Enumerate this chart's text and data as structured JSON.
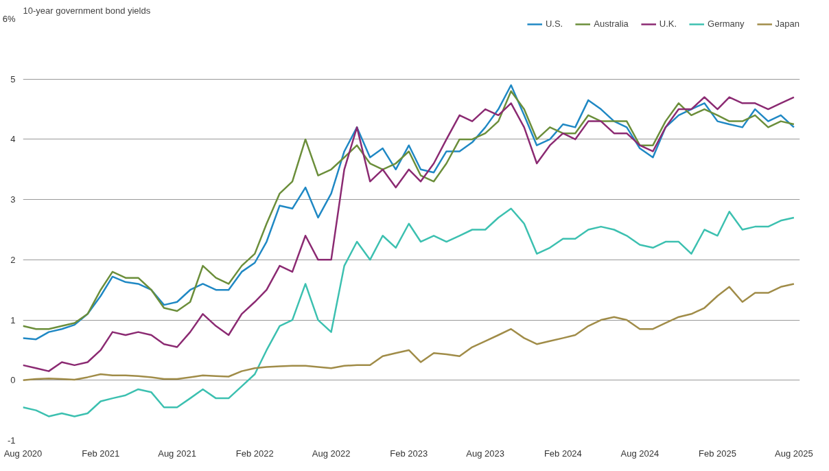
{
  "chart_data": {
    "type": "line",
    "title": "10-year government bond yields",
    "x": [
      "2020-08-01",
      "2020-09-01",
      "2020-10-01",
      "2020-11-01",
      "2020-12-01",
      "2021-01-01",
      "2021-02-01",
      "2021-03-01",
      "2021-04-01",
      "2021-05-01",
      "2021-06-01",
      "2021-07-01",
      "2021-08-01",
      "2021-09-01",
      "2021-10-01",
      "2021-11-01",
      "2021-12-01",
      "2022-01-01",
      "2022-02-01",
      "2022-03-01",
      "2022-04-01",
      "2022-05-01",
      "2022-06-01",
      "2022-07-01",
      "2022-08-01",
      "2022-09-01",
      "2022-10-01",
      "2022-11-01",
      "2022-12-01",
      "2023-01-01",
      "2023-02-01",
      "2023-03-01",
      "2023-04-01",
      "2023-05-01",
      "2023-06-01",
      "2023-07-01",
      "2023-08-01",
      "2023-09-01",
      "2023-10-01",
      "2023-11-01",
      "2023-12-01",
      "2024-01-01",
      "2024-02-01",
      "2024-03-01",
      "2024-04-01",
      "2024-05-01",
      "2024-06-01",
      "2024-07-01",
      "2024-08-01",
      "2024-09-01",
      "2024-10-01",
      "2024-11-01",
      "2024-12-01",
      "2025-01-01",
      "2025-02-01",
      "2025-03-01",
      "2025-04-01",
      "2025-05-01",
      "2025-06-01",
      "2025-07-01",
      "2025-08-01"
    ],
    "series": [
      {
        "name": "U.S.",
        "color": "#1f88c4",
        "values": [
          0.7,
          0.68,
          0.8,
          0.85,
          0.92,
          1.1,
          1.4,
          1.72,
          1.63,
          1.6,
          1.5,
          1.25,
          1.3,
          1.5,
          1.6,
          1.5,
          1.5,
          1.8,
          1.95,
          2.3,
          2.9,
          2.85,
          3.2,
          2.7,
          3.1,
          3.8,
          4.2,
          3.7,
          3.85,
          3.5,
          3.9,
          3.5,
          3.45,
          3.8,
          3.8,
          3.95,
          4.2,
          4.5,
          4.9,
          4.4,
          3.9,
          4.0,
          4.25,
          4.2,
          4.65,
          4.5,
          4.3,
          4.2,
          3.85,
          3.7,
          4.2,
          4.4,
          4.5,
          4.6,
          4.3,
          4.25,
          4.2,
          4.5,
          4.3,
          4.4,
          4.2
        ]
      },
      {
        "name": "Australia",
        "color": "#6b8e3a",
        "values": [
          0.9,
          0.85,
          0.85,
          0.9,
          0.95,
          1.1,
          1.5,
          1.8,
          1.7,
          1.7,
          1.5,
          1.2,
          1.15,
          1.3,
          1.9,
          1.7,
          1.6,
          1.9,
          2.1,
          2.6,
          3.1,
          3.3,
          4.0,
          3.4,
          3.5,
          3.7,
          3.9,
          3.6,
          3.5,
          3.6,
          3.8,
          3.4,
          3.3,
          3.6,
          4.0,
          4.0,
          4.1,
          4.3,
          4.8,
          4.5,
          4.0,
          4.2,
          4.1,
          4.1,
          4.4,
          4.3,
          4.3,
          4.3,
          3.9,
          3.9,
          4.3,
          4.6,
          4.4,
          4.5,
          4.4,
          4.3,
          4.3,
          4.4,
          4.2,
          4.3,
          4.25
        ]
      },
      {
        "name": "U.K.",
        "color": "#8b2a72",
        "values": [
          0.25,
          0.2,
          0.15,
          0.3,
          0.25,
          0.3,
          0.5,
          0.8,
          0.75,
          0.8,
          0.75,
          0.6,
          0.55,
          0.8,
          1.1,
          0.9,
          0.75,
          1.1,
          1.3,
          1.5,
          1.9,
          1.8,
          2.4,
          2.0,
          2.0,
          3.5,
          4.2,
          3.3,
          3.5,
          3.2,
          3.5,
          3.3,
          3.6,
          4.0,
          4.4,
          4.3,
          4.5,
          4.4,
          4.6,
          4.2,
          3.6,
          3.9,
          4.1,
          4.0,
          4.3,
          4.3,
          4.1,
          4.1,
          3.9,
          3.8,
          4.2,
          4.5,
          4.5,
          4.7,
          4.5,
          4.7,
          4.6,
          4.6,
          4.5,
          4.6,
          4.7
        ]
      },
      {
        "name": "Germany",
        "color": "#3cc0b0",
        "values": [
          -0.45,
          -0.5,
          -0.6,
          -0.55,
          -0.6,
          -0.55,
          -0.35,
          -0.3,
          -0.25,
          -0.15,
          -0.2,
          -0.45,
          -0.45,
          -0.3,
          -0.15,
          -0.3,
          -0.3,
          -0.1,
          0.1,
          0.5,
          0.9,
          1.0,
          1.6,
          1.0,
          0.8,
          1.9,
          2.3,
          2.0,
          2.4,
          2.2,
          2.6,
          2.3,
          2.4,
          2.3,
          2.4,
          2.5,
          2.5,
          2.7,
          2.85,
          2.6,
          2.1,
          2.2,
          2.35,
          2.35,
          2.5,
          2.55,
          2.5,
          2.4,
          2.25,
          2.2,
          2.3,
          2.3,
          2.1,
          2.5,
          2.4,
          2.8,
          2.5,
          2.55,
          2.55,
          2.65,
          2.7
        ]
      },
      {
        "name": "Japan",
        "color": "#a08c48",
        "values": [
          0.0,
          0.02,
          0.03,
          0.02,
          0.01,
          0.05,
          0.1,
          0.08,
          0.08,
          0.07,
          0.05,
          0.02,
          0.02,
          0.05,
          0.08,
          0.07,
          0.06,
          0.15,
          0.2,
          0.22,
          0.23,
          0.24,
          0.24,
          0.22,
          0.2,
          0.24,
          0.25,
          0.25,
          0.4,
          0.45,
          0.5,
          0.3,
          0.45,
          0.43,
          0.4,
          0.55,
          0.65,
          0.75,
          0.85,
          0.7,
          0.6,
          0.65,
          0.7,
          0.75,
          0.9,
          1.0,
          1.05,
          1.0,
          0.85,
          0.85,
          0.95,
          1.05,
          1.1,
          1.2,
          1.4,
          1.55,
          1.3,
          1.45,
          1.45,
          1.55,
          1.6
        ]
      }
    ],
    "xlim": [
      "2020-08-01",
      "2025-08-15"
    ],
    "xticks": [
      {
        "value": "2020-08-01",
        "label": "Aug 2020"
      },
      {
        "value": "2021-02-01",
        "label": "Feb 2021"
      },
      {
        "value": "2021-08-01",
        "label": "Aug 2021"
      },
      {
        "value": "2022-02-01",
        "label": "Feb 2022"
      },
      {
        "value": "2022-08-01",
        "label": "Aug 2022"
      },
      {
        "value": "2023-02-01",
        "label": "Feb 2023"
      },
      {
        "value": "2023-08-01",
        "label": "Aug 2023"
      },
      {
        "value": "2024-02-01",
        "label": "Feb 2024"
      },
      {
        "value": "2024-08-01",
        "label": "Aug 2024"
      },
      {
        "value": "2025-02-01",
        "label": "Feb 2025"
      },
      {
        "value": "2025-08-01",
        "label": "Aug 2025"
      }
    ],
    "ylim": [
      -1,
      6
    ],
    "yticks": [
      -1,
      0,
      1,
      2,
      3,
      4,
      5,
      {
        "value": 6,
        "label": "6%"
      }
    ],
    "grid": "y",
    "legend": "top right",
    "line_style": "solid"
  }
}
